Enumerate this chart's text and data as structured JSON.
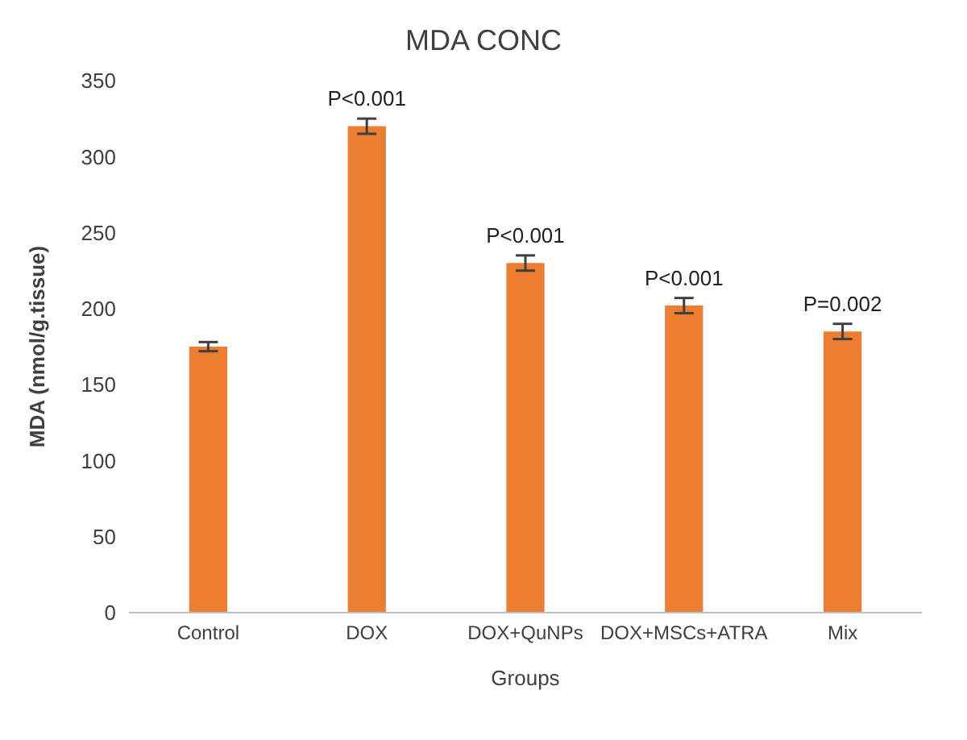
{
  "chart_data": {
    "type": "bar",
    "title": "MDA CONC",
    "xlabel": "Groups",
    "ylabel": "MDA (nmol/g.tissue)",
    "categories": [
      "Control",
      "DOX",
      "DOX+QuNPs",
      "DOX+MSCs+ATRA",
      "Mix"
    ],
    "values": [
      175,
      320,
      230,
      202,
      185
    ],
    "errors": [
      3,
      5,
      5,
      5,
      5
    ],
    "color": "#ed7d31",
    "ylim": [
      0,
      350
    ],
    "yticks": [
      0,
      50,
      100,
      150,
      200,
      250,
      300,
      350
    ],
    "grid": false,
    "legend": false,
    "annotations": [
      {
        "text": "P<0.001",
        "x": "DOX",
        "y": 325
      },
      {
        "text": "P<0.001",
        "x": "DOX+QuNPs",
        "y": 235
      },
      {
        "text": "P<0.001",
        "x": "DOX+MSCs+ATRA",
        "y": 207
      },
      {
        "text": "P=0.002",
        "x": "Mix",
        "y": 190
      }
    ]
  }
}
